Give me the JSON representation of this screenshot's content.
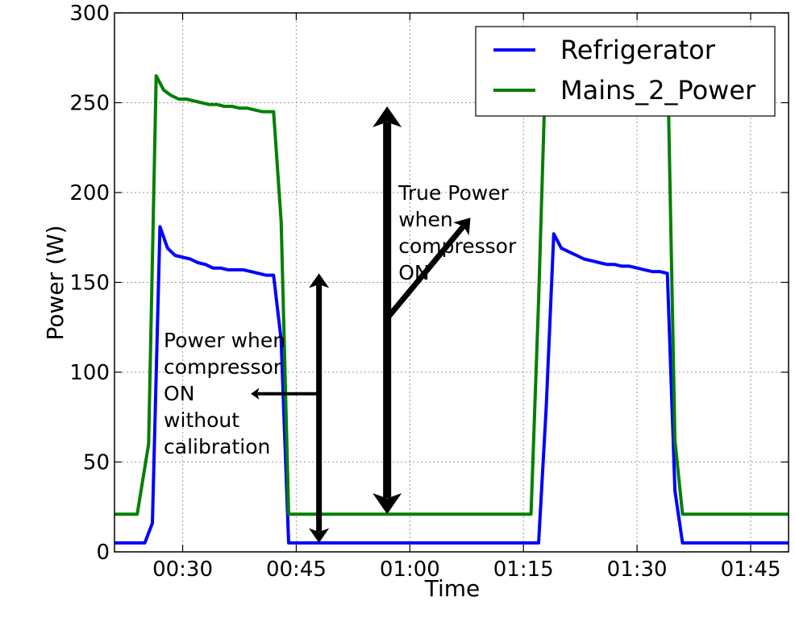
{
  "chart_data": {
    "type": "line",
    "title": "",
    "xlabel": "Time",
    "ylabel": "Power (W)",
    "xlim": [
      "00:21",
      "01:50"
    ],
    "ylim": [
      0,
      300
    ],
    "grid": true,
    "legend_position": "top-right",
    "x_tick_labels": [
      "00:30",
      "00:45",
      "01:00",
      "01:15",
      "01:30",
      "01:45"
    ],
    "y_tick_labels": [
      "0",
      "50",
      "100",
      "150",
      "200",
      "250",
      "300"
    ],
    "series": [
      {
        "name": "Refrigerator",
        "color": "#0000ff",
        "points": [
          [
            "00:21",
            5
          ],
          [
            "00:23",
            5
          ],
          [
            "00:25",
            5
          ],
          [
            "00:26",
            16
          ],
          [
            "00:27",
            181
          ],
          [
            "00:28",
            169
          ],
          [
            "00:29",
            165
          ],
          [
            "00:30",
            164
          ],
          [
            "00:31",
            163
          ],
          [
            "00:32",
            161
          ],
          [
            "00:33",
            160
          ],
          [
            "00:34",
            158
          ],
          [
            "00:35",
            158
          ],
          [
            "00:36",
            157
          ],
          [
            "00:37",
            157
          ],
          [
            "00:38",
            157
          ],
          [
            "00:39",
            156
          ],
          [
            "00:40",
            155
          ],
          [
            "00:41",
            154
          ],
          [
            "00:42",
            154
          ],
          [
            "00:43",
            118
          ],
          [
            "00:44",
            5
          ],
          [
            "00:50",
            5
          ],
          [
            "01:00",
            5
          ],
          [
            "01:10",
            5
          ],
          [
            "01:17",
            5
          ],
          [
            "01:18",
            80
          ],
          [
            "01:19",
            177
          ],
          [
            "01:20",
            169
          ],
          [
            "01:21",
            167
          ],
          [
            "01:22",
            165
          ],
          [
            "01:23",
            163
          ],
          [
            "01:24",
            162
          ],
          [
            "01:25",
            161
          ],
          [
            "01:26",
            160
          ],
          [
            "01:27",
            160
          ],
          [
            "01:28",
            159
          ],
          [
            "01:29",
            159
          ],
          [
            "01:30",
            158
          ],
          [
            "01:31",
            157
          ],
          [
            "01:32",
            156
          ],
          [
            "01:33",
            156
          ],
          [
            "01:34",
            155
          ],
          [
            "01:35",
            34
          ],
          [
            "01:36",
            5
          ],
          [
            "01:40",
            5
          ],
          [
            "01:50",
            5
          ]
        ]
      },
      {
        "name": "Mains_2_Power",
        "color": "#008000",
        "points": [
          [
            "00:21",
            21
          ],
          [
            "00:24",
            21
          ],
          [
            "00:25.5",
            60
          ],
          [
            "00:26.5",
            265
          ],
          [
            "00:27.5",
            257
          ],
          [
            "00:28.5",
            254
          ],
          [
            "00:29.5",
            252
          ],
          [
            "00:30.5",
            252
          ],
          [
            "00:31.5",
            251
          ],
          [
            "00:32.5",
            250
          ],
          [
            "00:33.5",
            249
          ],
          [
            "00:34.5",
            249
          ],
          [
            "00:35.5",
            248
          ],
          [
            "00:36.5",
            248
          ],
          [
            "00:37.5",
            247
          ],
          [
            "00:38.5",
            247
          ],
          [
            "00:39.5",
            246
          ],
          [
            "00:40.5",
            245
          ],
          [
            "00:41.5",
            245
          ],
          [
            "00:42",
            245
          ],
          [
            "00:43",
            184
          ],
          [
            "00:44",
            21
          ],
          [
            "00:50",
            21
          ],
          [
            "01:00",
            21
          ],
          [
            "01:10",
            21
          ],
          [
            "01:16",
            21
          ],
          [
            "01:17",
            140
          ],
          [
            "01:18",
            280
          ],
          [
            "01:34",
            280
          ],
          [
            "01:35",
            62
          ],
          [
            "01:36",
            21
          ],
          [
            "01:40",
            21
          ],
          [
            "01:50",
            21
          ]
        ]
      }
    ],
    "annotations": [
      {
        "lines": [
          "True Power",
          "when",
          "compressor",
          "ON"
        ],
        "text_at": [
          "00:58.5",
          196
        ],
        "arrows": [
          {
            "from": [
              "00:57",
              21
            ],
            "to": [
              "00:57",
              248
            ],
            "double": true,
            "width": "thick"
          },
          {
            "from": [
              "00:57",
              130
            ],
            "to": [
              "01:08",
              186
            ],
            "double": false,
            "width": "medium"
          }
        ]
      },
      {
        "lines": [
          "Power when",
          "compressor",
          "ON",
          "without",
          "calibration"
        ],
        "text_at": [
          "00:27.5",
          114
        ],
        "arrows": [
          {
            "from": [
              "00:48",
              5
            ],
            "to": [
              "00:48",
              155
            ],
            "double": true,
            "width": "medium"
          },
          {
            "from": [
              "00:48",
              88
            ],
            "to": [
              "00:39",
              88
            ],
            "double": false,
            "width": "thin"
          }
        ]
      }
    ]
  }
}
